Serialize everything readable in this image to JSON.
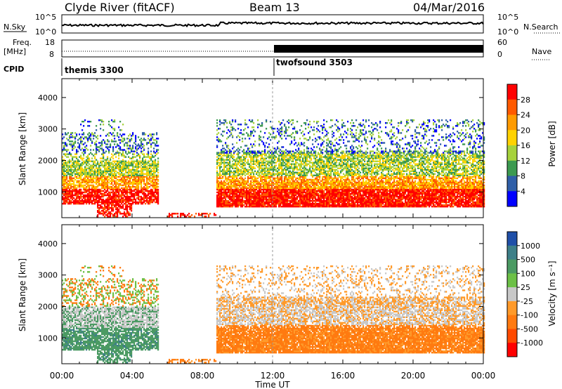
{
  "header": {
    "station": "Clyde River (fitACF)",
    "beam": "Beam 13",
    "date": "04/Mar/2016"
  },
  "strips": {
    "nsky_label": "N.Sky",
    "nsearch_label": "N.Search",
    "freq_label_1": "Freq.",
    "freq_label_2": "[MHz]",
    "nave_label": "Nave",
    "cpid_label": "CPID",
    "left_top_1": "10^5",
    "left_bot_1": "10^0",
    "right_top_1": "10^5",
    "right_bot_1": "10^0",
    "left_top_2": "18",
    "left_bot_2": "8",
    "right_top_2": "60",
    "right_bot_2": "0",
    "cpid_1": "themis 3300",
    "cpid_2": "twofsound 3503"
  },
  "chart_data": [
    {
      "type": "heatmap",
      "name": "power",
      "ylabel": "Slant Range [km]",
      "xlabel": "Time UT",
      "x_ticks": [
        "00:00",
        "04:00",
        "08:00",
        "12:00",
        "16:00",
        "20:00",
        "00:00"
      ],
      "xlim_hours": [
        0,
        24
      ],
      "ylim_km": [
        180,
        4600
      ],
      "y_ticks": [
        1000,
        2000,
        3000,
        4000
      ],
      "colorbar_label": "Power [dB]",
      "colorbar_ticks": [
        "28",
        "24",
        "20",
        "16",
        "12",
        "8",
        "4"
      ],
      "colorbar_colors": [
        "#ff0000",
        "#ff5a00",
        "#ff9b00",
        "#ffd200",
        "#a6d23c",
        "#3c9a50",
        "#2f5fa8",
        "#0000ff"
      ],
      "cpid_change_hour": 12.0
    },
    {
      "type": "heatmap",
      "name": "velocity",
      "ylabel": "Slant Range [km]",
      "xlabel": "Time UT",
      "x_ticks": [
        "00:00",
        "04:00",
        "08:00",
        "12:00",
        "16:00",
        "20:00",
        "00:00"
      ],
      "xlim_hours": [
        0,
        24
      ],
      "ylim_km": [
        180,
        4600
      ],
      "y_ticks": [
        1000,
        2000,
        3000,
        4000
      ],
      "colorbar_label": "Velocity [m s⁻¹]",
      "colorbar_ticks": [
        "1000",
        "500",
        "100",
        "25",
        "-25",
        "-100",
        "-500",
        "-1000"
      ],
      "colorbar_colors": [
        "#1f4fa8",
        "#3d7f88",
        "#4b9a63",
        "#6cc046",
        "#c8c8c8",
        "#ff9a2a",
        "#ff7a10",
        "#ff4a00",
        "#ff0000"
      ]
    }
  ]
}
